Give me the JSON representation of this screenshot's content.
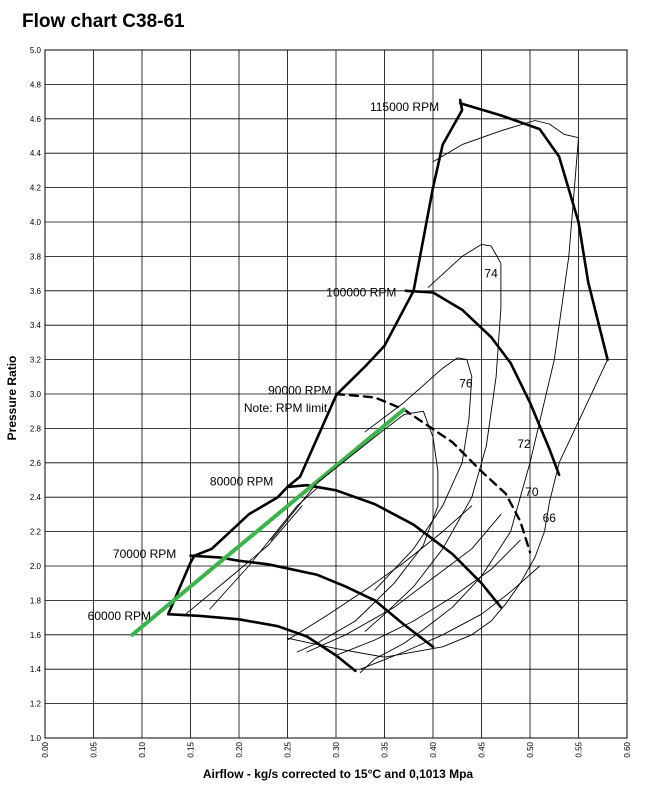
{
  "chart_data": {
    "type": "line",
    "title": "Flow chart C38-61",
    "xlabel": "Airflow - kg/s corrected to 15°C and 0,1013 Mpa",
    "ylabel": "Pressure Ratio",
    "xlim": [
      0.0,
      0.6
    ],
    "ylim": [
      1.0,
      5.0
    ],
    "grid": true,
    "x_ticks": [
      "0.00",
      "0.05",
      "0.10",
      "0.15",
      "0.20",
      "0.25",
      "0.30",
      "0.35",
      "0.40",
      "0.45",
      "0.50",
      "0.55",
      "0.60"
    ],
    "y_ticks": [
      "1.0",
      "1.2",
      "1.4",
      "1.6",
      "1.8",
      "2.0",
      "2.2",
      "2.4",
      "2.6",
      "2.8",
      "3.0",
      "3.2",
      "3.4",
      "3.6",
      "3.8",
      "4.0",
      "4.2",
      "4.4",
      "4.6",
      "4.8",
      "5.0"
    ],
    "annotations": {
      "speed_labels": [
        {
          "text": "60000 RPM",
          "x": 0.044,
          "y": 1.71
        },
        {
          "text": "70000 RPM",
          "x": 0.07,
          "y": 2.07
        },
        {
          "text": "80000 RPM",
          "x": 0.17,
          "y": 2.49
        },
        {
          "text": "90000 RPM",
          "x": 0.23,
          "y": 3.02
        },
        {
          "text": "Note: RPM limit",
          "x": 0.205,
          "y": 2.92
        },
        {
          "text": "100000 RPM",
          "x": 0.29,
          "y": 3.59
        },
        {
          "text": "115000 RPM",
          "x": 0.335,
          "y": 4.67
        }
      ],
      "efficiency_labels": [
        {
          "text": "74",
          "x": 0.453,
          "y": 3.7
        },
        {
          "text": "76",
          "x": 0.427,
          "y": 3.06
        },
        {
          "text": "72",
          "x": 0.487,
          "y": 2.71
        },
        {
          "text": "70",
          "x": 0.495,
          "y": 2.43
        },
        {
          "text": "66",
          "x": 0.513,
          "y": 2.28
        }
      ]
    },
    "series": [
      {
        "role": "surge-line",
        "style": "thick",
        "x": [
          0.127,
          0.15,
          0.154,
          0.172,
          0.21,
          0.24,
          0.25,
          0.263,
          0.3,
          0.303,
          0.33,
          0.35,
          0.38,
          0.4,
          0.41,
          0.43,
          0.428
        ],
        "y": [
          1.72,
          2.02,
          2.06,
          2.1,
          2.3,
          2.4,
          2.46,
          2.52,
          2.99,
          3.01,
          3.16,
          3.28,
          3.6,
          4.2,
          4.45,
          4.65,
          4.71
        ]
      },
      {
        "role": "choke-115000",
        "style": "thick",
        "x": [
          0.428,
          0.47,
          0.51,
          0.53,
          0.55,
          0.56,
          0.58
        ],
        "y": [
          4.69,
          4.62,
          4.54,
          4.38,
          4.0,
          3.65,
          3.2
        ]
      },
      {
        "role": "speed-100000",
        "style": "thick",
        "x": [
          0.372,
          0.4,
          0.43,
          0.46,
          0.48,
          0.5,
          0.52,
          0.53
        ],
        "y": [
          3.6,
          3.59,
          3.49,
          3.33,
          3.18,
          2.95,
          2.68,
          2.53
        ]
      },
      {
        "role": "speed-90000-limit",
        "style": "dashed",
        "x": [
          0.3,
          0.34,
          0.37,
          0.42,
          0.45,
          0.475,
          0.49,
          0.5
        ],
        "y": [
          3.0,
          2.98,
          2.91,
          2.72,
          2.55,
          2.42,
          2.26,
          2.08
        ]
      },
      {
        "role": "speed-80000",
        "style": "thick",
        "x": [
          0.25,
          0.27,
          0.3,
          0.34,
          0.38,
          0.42,
          0.45,
          0.47
        ],
        "y": [
          2.46,
          2.47,
          2.44,
          2.36,
          2.24,
          2.07,
          1.9,
          1.76
        ]
      },
      {
        "role": "speed-70000",
        "style": "thick",
        "x": [
          0.15,
          0.18,
          0.2,
          0.23,
          0.28,
          0.31,
          0.34,
          0.37,
          0.4
        ],
        "y": [
          2.06,
          2.05,
          2.03,
          2.01,
          1.95,
          1.88,
          1.8,
          1.66,
          1.53
        ]
      },
      {
        "role": "speed-60000",
        "style": "thick",
        "x": [
          0.127,
          0.16,
          0.2,
          0.24,
          0.27,
          0.3,
          0.32
        ],
        "y": [
          1.72,
          1.71,
          1.69,
          1.65,
          1.59,
          1.48,
          1.39
        ]
      },
      {
        "role": "engine-line",
        "style": "green",
        "color": "#3cb44b",
        "x": [
          0.09,
          0.37
        ],
        "y": [
          1.6,
          2.91
        ]
      },
      {
        "role": "efficiency-island",
        "style": "thin",
        "x": [
          0.4,
          0.43,
          0.47,
          0.505,
          0.52,
          0.535,
          0.55
        ],
        "y": [
          4.35,
          4.45,
          4.53,
          4.59,
          4.57,
          4.51,
          4.49
        ]
      },
      {
        "role": "efficiency-island",
        "style": "thin",
        "x": [
          0.55,
          0.54,
          0.525,
          0.5,
          0.48,
          0.45,
          0.42,
          0.39,
          0.37,
          0.34,
          0.325
        ],
        "y": [
          4.49,
          3.8,
          3.2,
          2.6,
          2.2,
          1.94,
          1.76,
          1.63,
          1.55,
          1.46,
          1.38
        ]
      },
      {
        "role": "efficiency-island",
        "style": "thin",
        "x": [
          0.395,
          0.43,
          0.45,
          0.46,
          0.47,
          0.47,
          0.465,
          0.455,
          0.44,
          0.41,
          0.38,
          0.35,
          0.33
        ],
        "y": [
          3.62,
          3.8,
          3.87,
          3.86,
          3.76,
          3.5,
          3.1,
          2.7,
          2.4,
          2.1,
          1.88,
          1.72,
          1.62
        ]
      },
      {
        "role": "efficiency-island",
        "style": "thin",
        "x": [
          0.33,
          0.37,
          0.41,
          0.425,
          0.435,
          0.44,
          0.437,
          0.43,
          0.41,
          0.38,
          0.34
        ],
        "y": [
          2.78,
          2.95,
          3.15,
          3.21,
          3.2,
          3.1,
          2.85,
          2.6,
          2.35,
          2.1,
          1.86
        ]
      },
      {
        "role": "efficiency-island",
        "style": "thin",
        "x": [
          0.233,
          0.28,
          0.34,
          0.37,
          0.39,
          0.4,
          0.405,
          0.405,
          0.39,
          0.36,
          0.32,
          0.28,
          0.26
        ],
        "y": [
          2.15,
          2.48,
          2.75,
          2.88,
          2.9,
          2.75,
          2.55,
          2.35,
          2.12,
          1.9,
          1.68,
          1.55,
          1.5
        ]
      },
      {
        "role": "efficiency-island",
        "style": "thin",
        "x": [
          0.17,
          0.21,
          0.26,
          0.28
        ],
        "y": [
          1.75,
          2.0,
          2.35,
          2.45
        ]
      },
      {
        "role": "efficiency-island",
        "style": "thin",
        "x": [
          0.145,
          0.19,
          0.23,
          0.265
        ],
        "y": [
          1.72,
          1.93,
          2.12,
          2.35
        ]
      },
      {
        "role": "efficiency-island",
        "style": "thin",
        "x": [
          0.25,
          0.3,
          0.35,
          0.41,
          0.44,
          0.46,
          0.475,
          0.49,
          0.505,
          0.515,
          0.52,
          0.53,
          0.58
        ],
        "y": [
          1.58,
          1.52,
          1.47,
          1.53,
          1.6,
          1.68,
          1.78,
          1.9,
          2.05,
          2.2,
          2.37,
          2.6,
          3.2
        ]
      },
      {
        "role": "efficiency-island",
        "style": "thin",
        "x": [
          0.25,
          0.29,
          0.33,
          0.37,
          0.41,
          0.44
        ],
        "y": [
          1.57,
          1.71,
          1.86,
          2.02,
          2.2,
          2.35
        ]
      },
      {
        "role": "efficiency-island",
        "style": "thin",
        "x": [
          0.27,
          0.31,
          0.36,
          0.4,
          0.44,
          0.47
        ],
        "y": [
          1.5,
          1.6,
          1.76,
          1.93,
          2.1,
          2.3
        ]
      },
      {
        "role": "efficiency-island",
        "style": "thin",
        "x": [
          0.3,
          0.34,
          0.38,
          0.42,
          0.46,
          0.49
        ],
        "y": [
          1.48,
          1.57,
          1.68,
          1.82,
          1.98,
          2.15
        ]
      },
      {
        "role": "efficiency-island",
        "style": "thin",
        "x": [
          0.325,
          0.37,
          0.41,
          0.45,
          0.48,
          0.51
        ],
        "y": [
          1.4,
          1.5,
          1.6,
          1.72,
          1.85,
          2.0
        ]
      }
    ]
  }
}
